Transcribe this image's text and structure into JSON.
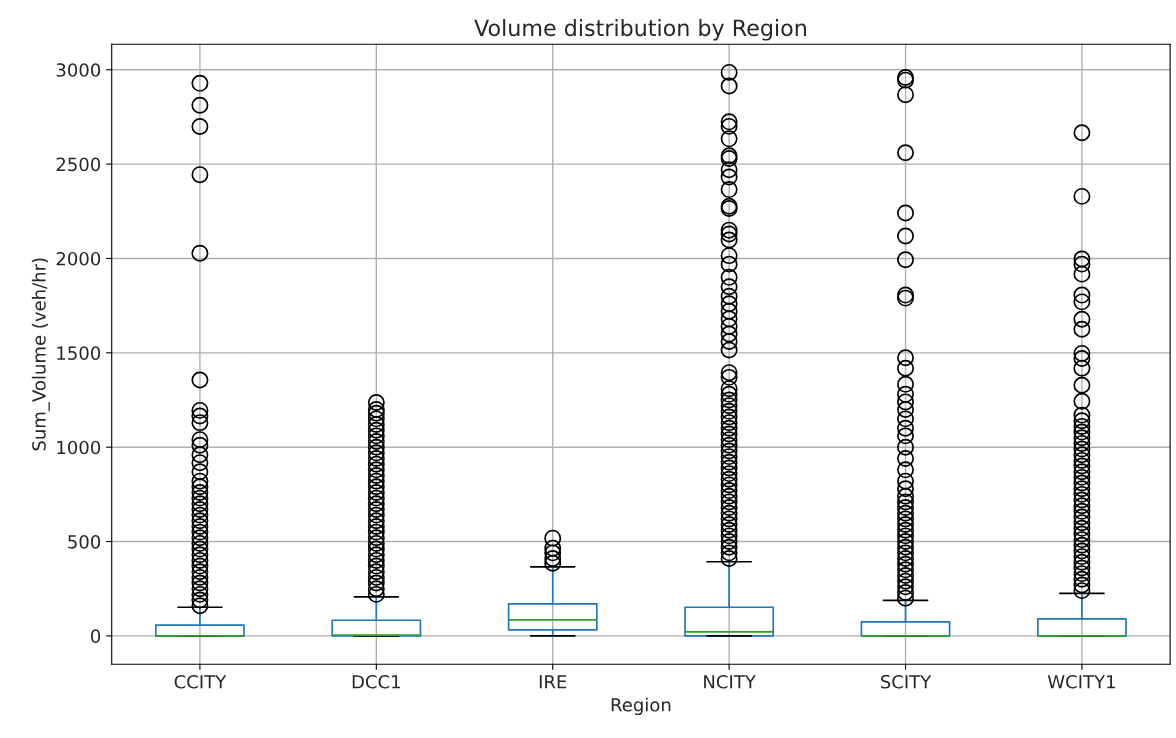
{
  "chart_data": {
    "type": "box",
    "title": "Volume distribution by Region",
    "xlabel": "Region",
    "ylabel": "Sum_Volume (veh/hr)",
    "categories": [
      "CCITY",
      "DCC1",
      "IRE",
      "NCITY",
      "SCITY",
      "WCITY1"
    ],
    "ylim": [
      -150,
      3135
    ],
    "yticks": [
      0,
      500,
      1000,
      1500,
      2000,
      2500,
      3000
    ],
    "grid": true,
    "marker": "circle",
    "series": [
      {
        "color": "#1f77b4",
        "boxes": [
          {
            "low": 0,
            "q1": 0,
            "median": 0,
            "q3": 57,
            "high": 152,
            "outliers": [
              160,
              190,
              220,
              250,
              280,
              310,
              340,
              370,
              400,
              430,
              460,
              490,
              520,
              550,
              580,
              610,
              640,
              670,
              700,
              730,
              760,
              790,
              820,
              870,
              918,
              960,
              1010,
              1040,
              1130,
              1165,
              1195,
              1356,
              2028,
              2444,
              2699,
              2812,
              2928
            ]
          },
          {
            "low": 0,
            "q1": 0,
            "median": 4,
            "q3": 83,
            "high": 207,
            "outliers": [
              220,
              250,
              280,
              310,
              340,
              370,
              400,
              430,
              460,
              490,
              520,
              550,
              580,
              610,
              640,
              670,
              700,
              730,
              760,
              790,
              820,
              850,
              880,
              910,
              940,
              970,
              1000,
              1030,
              1060,
              1090,
              1120,
              1150,
              1180,
              1200,
              1237
            ]
          },
          {
            "low": 0,
            "q1": 32,
            "median": 85,
            "q3": 170,
            "high": 366,
            "outliers": [
              385,
              410,
              440,
              465,
              518
            ]
          },
          {
            "low": 0,
            "q1": 0,
            "median": 21,
            "q3": 152,
            "high": 393,
            "outliers": [
              410,
              440,
              470,
              500,
              530,
              560,
              590,
              620,
              650,
              680,
              710,
              740,
              770,
              800,
              830,
              860,
              890,
              920,
              950,
              980,
              1010,
              1040,
              1070,
              1100,
              1130,
              1160,
              1190,
              1220,
              1250,
              1280,
              1310,
              1370,
              1395,
              1515,
              1560,
              1600,
              1640,
              1680,
              1720,
              1760,
              1800,
              1850,
              1900,
              1970,
              2015,
              2098,
              2130,
              2150,
              2265,
              2277,
              2365,
              2432,
              2470,
              2530,
              2544,
              2634,
              2700,
              2724,
              2914,
              2986
            ]
          },
          {
            "low": 0,
            "q1": 0,
            "median": 0,
            "q3": 74,
            "high": 188,
            "outliers": [
              200,
              230,
              260,
              290,
              320,
              350,
              380,
              410,
              440,
              470,
              500,
              530,
              560,
              590,
              620,
              650,
              680,
              710,
              740,
              780,
              820,
              880,
              940,
              1000,
              1060,
              1100,
              1150,
              1200,
              1240,
              1280,
              1333,
              1418,
              1474,
              1790,
              1806,
              1993,
              2119,
              2241,
              2560,
              2868,
              2945,
              2959
            ]
          },
          {
            "low": 0,
            "q1": 0,
            "median": 0,
            "q3": 90,
            "high": 225,
            "outliers": [
              240,
              270,
              300,
              330,
              360,
              390,
              420,
              450,
              480,
              510,
              540,
              570,
              600,
              630,
              660,
              690,
              720,
              750,
              780,
              810,
              840,
              870,
              900,
              930,
              960,
              990,
              1020,
              1050,
              1080,
              1110,
              1140,
              1170,
              1243,
              1328,
              1418,
              1470,
              1497,
              1625,
              1678,
              1770,
              1806,
              1917,
              1970,
              1997,
              2329,
              2666
            ]
          }
        ]
      }
    ]
  }
}
